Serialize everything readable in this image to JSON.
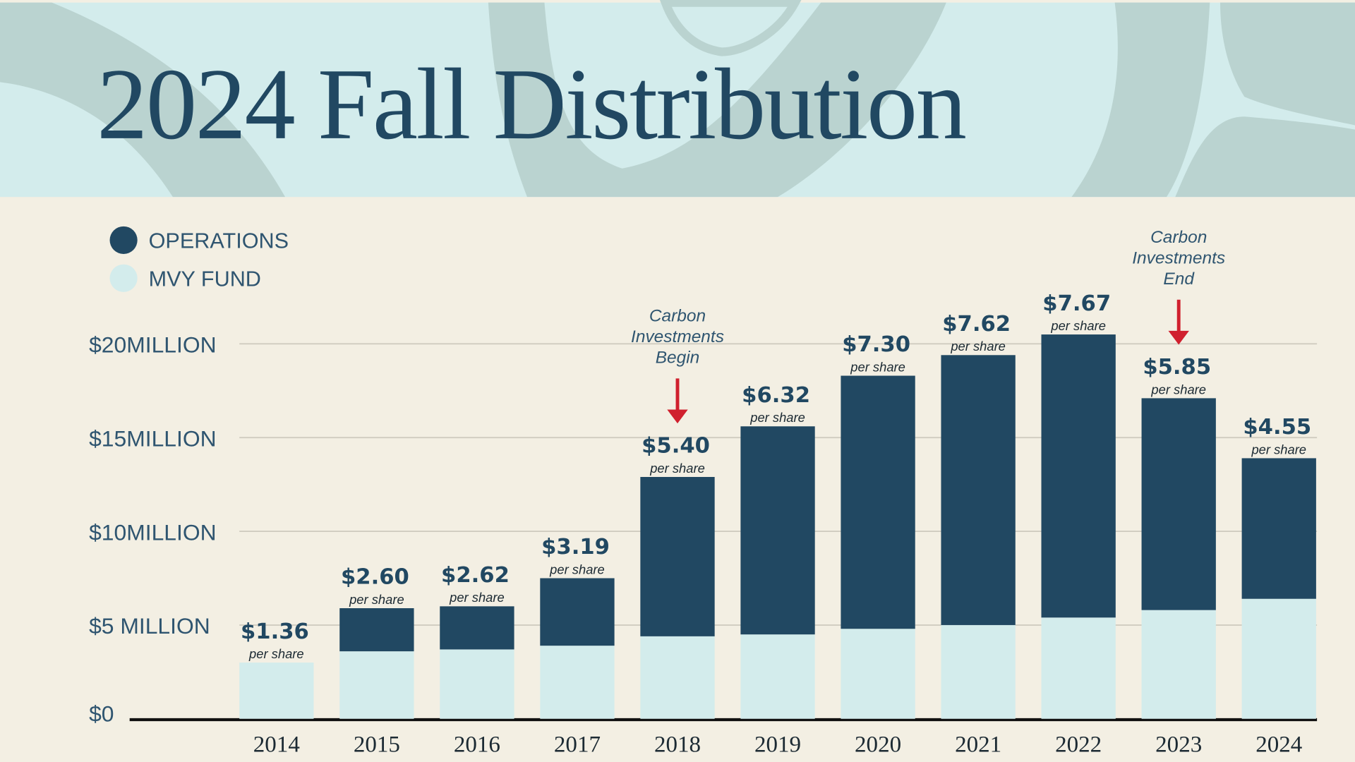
{
  "title": "2024 Fall Distribution",
  "colors": {
    "operations": "#214862",
    "mvy_fund": "#d3ecec",
    "background": "#f3efe3",
    "header": "#d3ecec",
    "header_shape": "#bad3d0",
    "arrow": "#d0202e"
  },
  "legend": [
    {
      "label": "OPERATIONS",
      "color": "#214862"
    },
    {
      "label": "MVY FUND",
      "color": "#d3ecec"
    }
  ],
  "chart_data": {
    "type": "bar",
    "stacked": true,
    "title": "2024 Fall Distribution",
    "categories": [
      "2014",
      "2015",
      "2016",
      "2017",
      "2018",
      "2019",
      "2020",
      "2021",
      "2022",
      "2023",
      "2024"
    ],
    "series": [
      {
        "name": "MVY FUND",
        "values": [
          3.0,
          3.6,
          3.7,
          3.9,
          4.4,
          4.5,
          4.8,
          5.0,
          5.4,
          5.8,
          6.4
        ]
      },
      {
        "name": "OPERATIONS",
        "values": [
          0,
          2.3,
          2.3,
          3.6,
          8.5,
          11.1,
          13.5,
          14.4,
          15.1,
          11.3,
          7.5
        ]
      }
    ],
    "unit": "million USD",
    "ylim": [
      0,
      20
    ],
    "yticks": [
      {
        "value": 0,
        "label": "$0"
      },
      {
        "value": 5,
        "label": "$5 MILLION"
      },
      {
        "value": 10,
        "label": "$10MILLION"
      },
      {
        "value": 15,
        "label": "$15MILLION"
      },
      {
        "value": 20,
        "label": "$20MILLION"
      }
    ],
    "grid": true,
    "legend_position": "top-left",
    "data_labels": [
      "$1.36",
      "$2.60",
      "$2.62",
      "$3.19",
      "$5.40",
      "$6.32",
      "$7.30",
      "$7.62",
      "$7.67",
      "$5.85",
      "$4.55"
    ],
    "data_label_sub": "per share",
    "annotations": [
      {
        "category": "2018",
        "lines": [
          "Carbon",
          "Investments",
          "Begin"
        ],
        "arrow": "down"
      },
      {
        "category": "2023",
        "lines": [
          "Carbon",
          "Investments",
          "End"
        ],
        "arrow": "down"
      }
    ]
  }
}
